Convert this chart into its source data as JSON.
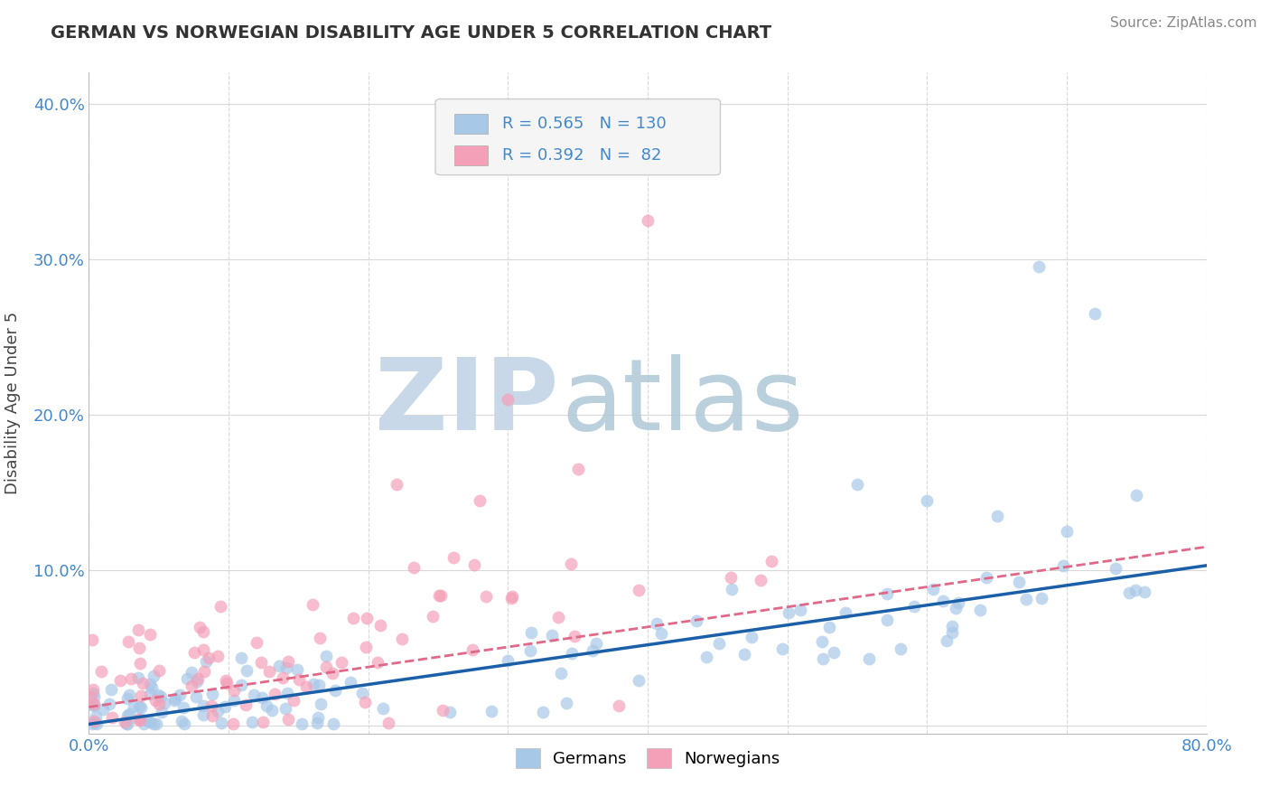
{
  "title": "GERMAN VS NORWEGIAN DISABILITY AGE UNDER 5 CORRELATION CHART",
  "source": "Source: ZipAtlas.com",
  "xlim": [
    0.0,
    0.8
  ],
  "ylim": [
    -0.005,
    0.42
  ],
  "german_R": 0.565,
  "german_N": 130,
  "norwegian_R": 0.392,
  "norwegian_N": 82,
  "german_color": "#a8c8e8",
  "norwegian_color": "#f4a0b8",
  "german_line_color": "#1a5fa8",
  "norwegian_line_color": "#e06888",
  "background_color": "#ffffff",
  "watermark_zip_color": "#c8d8e8",
  "watermark_atlas_color": "#b0c8d8",
  "legend_label_german": "Germans",
  "legend_label_norwegian": "Norwegians",
  "yticks": [
    0.0,
    0.1,
    0.2,
    0.3,
    0.4
  ],
  "xticks": [
    0.0,
    0.1,
    0.2,
    0.3,
    0.4,
    0.5,
    0.6,
    0.7,
    0.8
  ],
  "german_line_start_y": 0.001,
  "german_line_end_y": 0.103,
  "norwegian_line_start_y": 0.012,
  "norwegian_line_end_y": 0.115
}
